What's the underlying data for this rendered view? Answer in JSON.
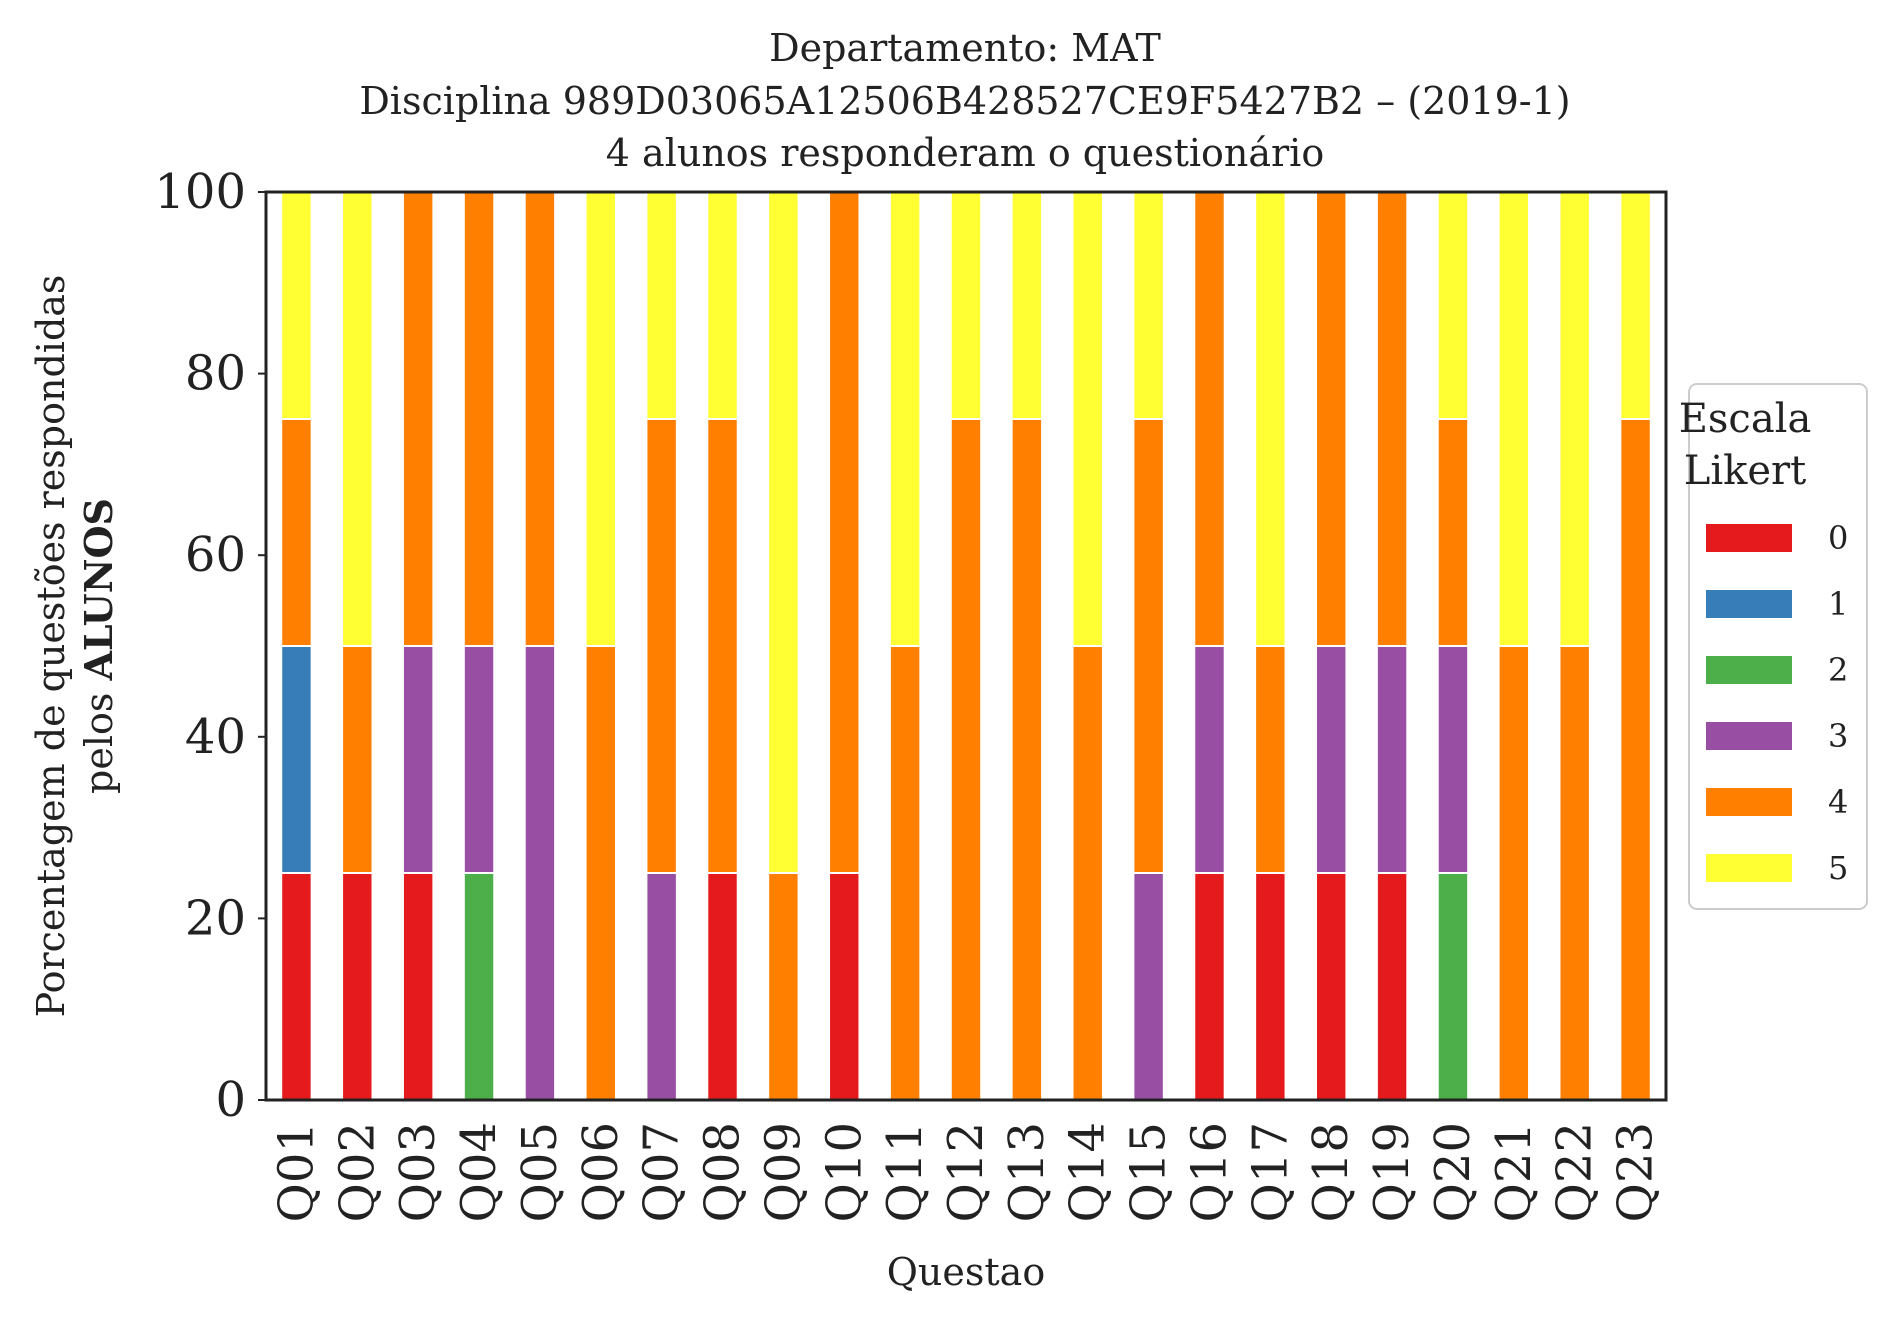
{
  "chart_data": {
    "type": "bar",
    "stacked": true,
    "title_lines": [
      "Departamento: MAT",
      "Disciplina 989D03065A12506B428527CE9F5427B2 – (2019-1)",
      "4 alunos responderam o questionário"
    ],
    "xlabel": "Questao",
    "ylabel_line1": "Porcentagem de questões respondidas",
    "ylabel_line2_prefix": "pelos ",
    "ylabel_line2_bold": "ALUNOS",
    "ylim": [
      0,
      100
    ],
    "yticks": [
      "0",
      "20",
      "40",
      "60",
      "80",
      "100"
    ],
    "grid": false,
    "legend": {
      "title_line1": "Escala",
      "title_line2": "Likert",
      "placement": "right-center"
    },
    "categories": [
      "Q01",
      "Q02",
      "Q03",
      "Q04",
      "Q05",
      "Q06",
      "Q07",
      "Q08",
      "Q09",
      "Q10",
      "Q11",
      "Q12",
      "Q13",
      "Q14",
      "Q15",
      "Q16",
      "Q17",
      "Q18",
      "Q19",
      "Q20",
      "Q21",
      "Q22",
      "Q23"
    ],
    "series": [
      {
        "name": "0",
        "color": "#e41a1c",
        "values": [
          25,
          25,
          25,
          0,
          0,
          0,
          0,
          25,
          0,
          25,
          0,
          0,
          0,
          0,
          0,
          25,
          25,
          25,
          25,
          0,
          0,
          0,
          0
        ]
      },
      {
        "name": "1",
        "color": "#377eb8",
        "values": [
          25,
          0,
          0,
          0,
          0,
          0,
          0,
          0,
          0,
          0,
          0,
          0,
          0,
          0,
          0,
          0,
          0,
          0,
          0,
          0,
          0,
          0,
          0
        ]
      },
      {
        "name": "2",
        "color": "#4daf4a",
        "values": [
          0,
          0,
          0,
          25,
          0,
          0,
          0,
          0,
          0,
          0,
          0,
          0,
          0,
          0,
          0,
          0,
          0,
          0,
          0,
          25,
          0,
          0,
          0
        ]
      },
      {
        "name": "3",
        "color": "#984ea3",
        "values": [
          0,
          0,
          25,
          25,
          50,
          0,
          25,
          0,
          0,
          0,
          0,
          0,
          0,
          0,
          25,
          25,
          0,
          25,
          25,
          25,
          0,
          0,
          0
        ]
      },
      {
        "name": "4",
        "color": "#ff7f00",
        "values": [
          25,
          25,
          50,
          50,
          50,
          50,
          50,
          50,
          25,
          75,
          50,
          75,
          75,
          50,
          50,
          50,
          25,
          50,
          50,
          25,
          50,
          50,
          75
        ]
      },
      {
        "name": "5",
        "color": "#ffff33",
        "values": [
          25,
          50,
          0,
          0,
          0,
          50,
          25,
          25,
          75,
          0,
          50,
          25,
          25,
          50,
          25,
          0,
          50,
          0,
          0,
          25,
          50,
          50,
          25
        ]
      }
    ]
  }
}
